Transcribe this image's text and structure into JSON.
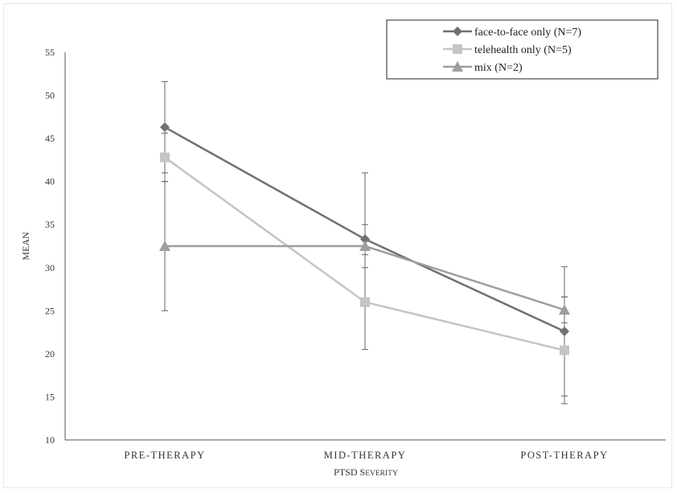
{
  "chart_data": {
    "type": "line",
    "xlabel": "PTSD Severity",
    "ylabel": "MEAN",
    "ylim": [
      10,
      55
    ],
    "yticks": [
      10,
      15,
      20,
      25,
      30,
      35,
      40,
      45,
      50,
      55
    ],
    "categories": [
      "PRE-THERAPY",
      "MID-THERAPY",
      "POST-THERAPY"
    ],
    "grid": false,
    "legend_position": "top-right",
    "series": [
      {
        "name": "face-to-face only (N=7)",
        "values": [
          46.3,
          33.3,
          22.6
        ],
        "errors": [
          5.3,
          7.7,
          7.5
        ],
        "color": "#707070",
        "marker": "diamond"
      },
      {
        "name": "telehealth only (N=5)",
        "values": [
          42.8,
          26.0,
          20.4
        ],
        "errors": [
          2.8,
          5.5,
          6.2
        ],
        "color": "#c4c4c4",
        "marker": "square"
      },
      {
        "name": "mix (N=2)",
        "values": [
          32.5,
          32.5,
          25.1
        ],
        "errors": [
          7.5,
          2.5,
          1.5
        ],
        "color": "#9e9e9e",
        "marker": "triangle"
      }
    ]
  }
}
